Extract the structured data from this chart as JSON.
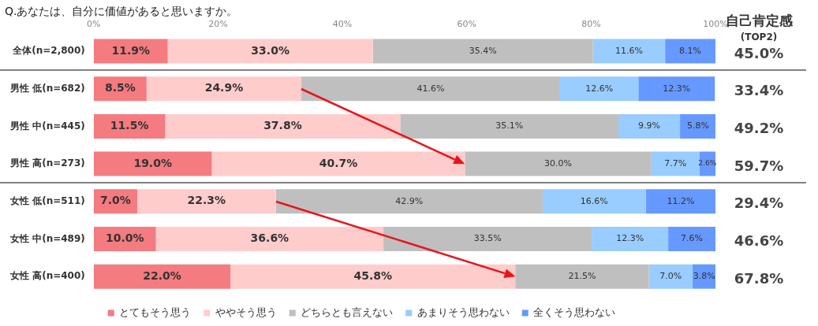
{
  "chart_data": {
    "type": "bar",
    "orientation": "horizontal",
    "stacked": true,
    "title": "Q.あなたは、自分に価値があると思いますか。",
    "categories": [
      "全体(n=2,800)",
      "男性 低(n=682)",
      "男性 中(n=445)",
      "男性 高(n=273)",
      "女性 低(n=511)",
      "女性 中(n=489)",
      "女性 高(n=400)"
    ],
    "series": [
      {
        "name": "とてもそう思う",
        "color": "#f47b7f",
        "values": [
          11.9,
          8.5,
          11.5,
          19.0,
          7.0,
          10.0,
          22.0
        ],
        "value_labels": [
          "11.9%",
          "8.5%",
          "11.5%",
          "19.0%",
          "7.0%",
          "10.0%",
          "22.0%"
        ]
      },
      {
        "name": "ややそう思う",
        "color": "#ffcccc",
        "values": [
          33.0,
          24.9,
          37.8,
          40.7,
          22.3,
          36.6,
          45.8
        ],
        "value_labels": [
          "33.0%",
          "24.9%",
          "37.8%",
          "40.7%",
          "22.3%",
          "36.6%",
          "45.8%"
        ]
      },
      {
        "name": "どちらとも言えない",
        "color": "#bfbfbf",
        "values": [
          35.4,
          41.6,
          35.1,
          30.0,
          42.9,
          33.5,
          21.5
        ],
        "value_labels": [
          "35.4%",
          "41.6%",
          "35.1%",
          "30.0%",
          "42.9%",
          "33.5%",
          "21.5%"
        ]
      },
      {
        "name": "あまりそう思わない",
        "color": "#99ccff",
        "values": [
          11.6,
          12.6,
          9.9,
          7.7,
          16.6,
          12.3,
          7.0
        ],
        "value_labels": [
          "11.6%",
          "12.6%",
          "9.9%",
          "7.7%",
          "16.6%",
          "12.3%",
          "7.0%"
        ]
      },
      {
        "name": "全くそう思わない",
        "color": "#6699ff",
        "values": [
          8.1,
          12.3,
          5.8,
          2.6,
          11.2,
          7.6,
          3.8
        ],
        "value_labels": [
          "8.1%",
          "12.3%",
          "5.8%",
          "2.6%",
          "11.2%",
          "7.6%",
          "3.8%"
        ]
      }
    ],
    "xlim": [
      0,
      100
    ],
    "xticks": [
      {
        "value": 0,
        "label": "0%"
      },
      {
        "value": 20,
        "label": "20%"
      },
      {
        "value": 40,
        "label": "40%"
      },
      {
        "value": 60,
        "label": "60%"
      },
      {
        "value": 80,
        "label": "80%"
      },
      {
        "value": 100,
        "label": "100%"
      }
    ],
    "grid": false,
    "legend": "bottom",
    "annotations": [
      "自己肯定感",
      "(TOP2)",
      "45.0%",
      "33.4%",
      "49.2%",
      "59.7%",
      "29.4%",
      "46.6%",
      "67.8%"
    ]
  }
}
